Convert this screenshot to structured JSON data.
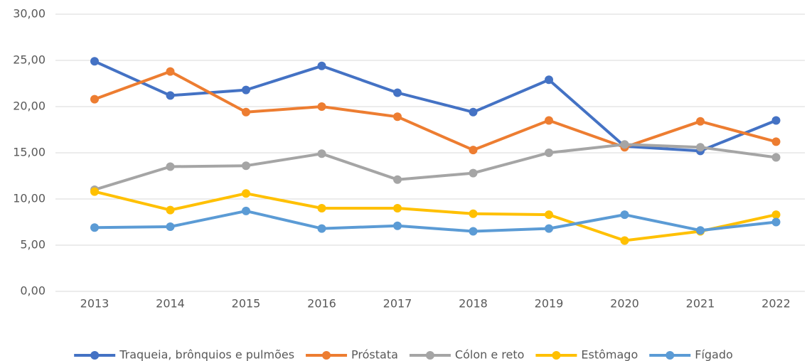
{
  "chart_data": {
    "type": "line",
    "categories": [
      "2013",
      "2014",
      "2015",
      "2016",
      "2017",
      "2018",
      "2019",
      "2020",
      "2021",
      "2022"
    ],
    "series": [
      {
        "name": "Traqueia, brônquios e pulmões",
        "color": "#4472c4",
        "values": [
          24.9,
          21.2,
          21.8,
          24.4,
          21.5,
          19.4,
          22.9,
          15.7,
          15.2,
          18.5
        ]
      },
      {
        "name": "Próstata",
        "color": "#ed7d31",
        "values": [
          20.8,
          23.8,
          19.4,
          20.0,
          18.9,
          15.3,
          18.5,
          15.6,
          18.4,
          16.2
        ]
      },
      {
        "name": "Cólon e reto",
        "color": "#a5a5a5",
        "values": [
          11.0,
          13.5,
          13.6,
          14.9,
          12.1,
          12.8,
          15.0,
          15.9,
          15.6,
          14.5
        ]
      },
      {
        "name": "Estômago",
        "color": "#ffc000",
        "values": [
          10.8,
          8.8,
          10.6,
          9.0,
          9.0,
          8.4,
          8.3,
          5.5,
          6.5,
          8.3
        ]
      },
      {
        "name": "Fígado",
        "color": "#5b9bd5",
        "values": [
          6.9,
          7.0,
          8.7,
          6.8,
          7.1,
          6.5,
          6.8,
          8.3,
          6.6,
          7.5
        ]
      }
    ],
    "ylim": [
      0,
      30
    ],
    "yticks": [
      {
        "value": 0,
        "label": "0,00"
      },
      {
        "value": 5,
        "label": "5,00"
      },
      {
        "value": 10,
        "label": "10,00"
      },
      {
        "value": 15,
        "label": "15,00"
      },
      {
        "value": 20,
        "label": "20,00"
      },
      {
        "value": 25,
        "label": "25,00"
      },
      {
        "value": 30,
        "label": "30,00"
      }
    ],
    "grid": true,
    "legend": "bottom"
  }
}
